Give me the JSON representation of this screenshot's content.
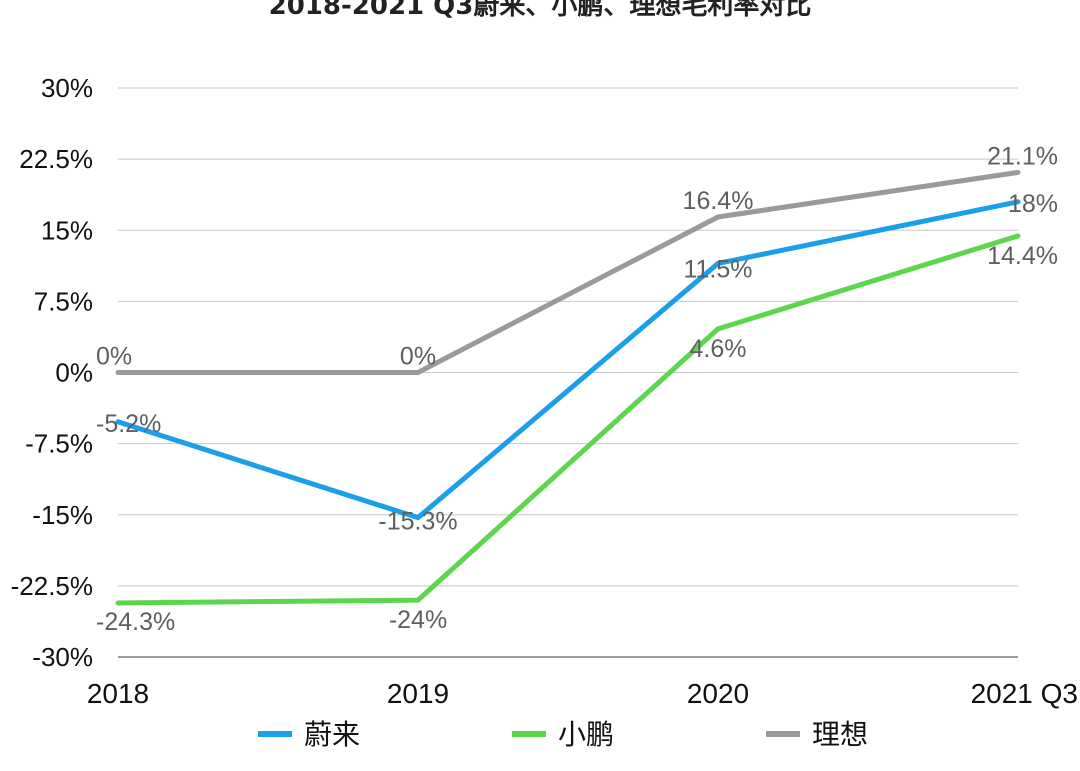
{
  "chart_data": {
    "type": "line",
    "title": "2018-2021 Q3蔚来、小鹏、理想毛利率对比",
    "categories": [
      "2018",
      "2019",
      "2020",
      "2021 Q3"
    ],
    "ylim": [
      -30,
      30
    ],
    "yticks": [
      30,
      22.5,
      15,
      7.5,
      0,
      -7.5,
      -15,
      -22.5,
      -30
    ],
    "ytick_labels": [
      "30%",
      "22.5%",
      "15%",
      "7.5%",
      "0%",
      "-7.5%",
      "-15%",
      "-22.5%",
      "-30%"
    ],
    "grid": true,
    "legend_position": "bottom",
    "series": [
      {
        "name": "蔚来",
        "color": "#1a9fe8",
        "values": [
          -5.2,
          -15.3,
          11.5,
          18
        ],
        "labels": [
          "-5.2%",
          "-15.3%",
          "11.5%",
          "18%"
        ]
      },
      {
        "name": "小鹏",
        "color": "#5cd64c",
        "values": [
          -24.3,
          -24,
          4.6,
          14.4
        ],
        "labels": [
          "-24.3%",
          "-24%",
          "4.6%",
          "14.4%"
        ]
      },
      {
        "name": "理想",
        "color": "#9a9a9a",
        "values": [
          0,
          0,
          16.4,
          21.1
        ],
        "labels": [
          "0%",
          "0%",
          "16.4%",
          "21.1%"
        ]
      }
    ]
  }
}
